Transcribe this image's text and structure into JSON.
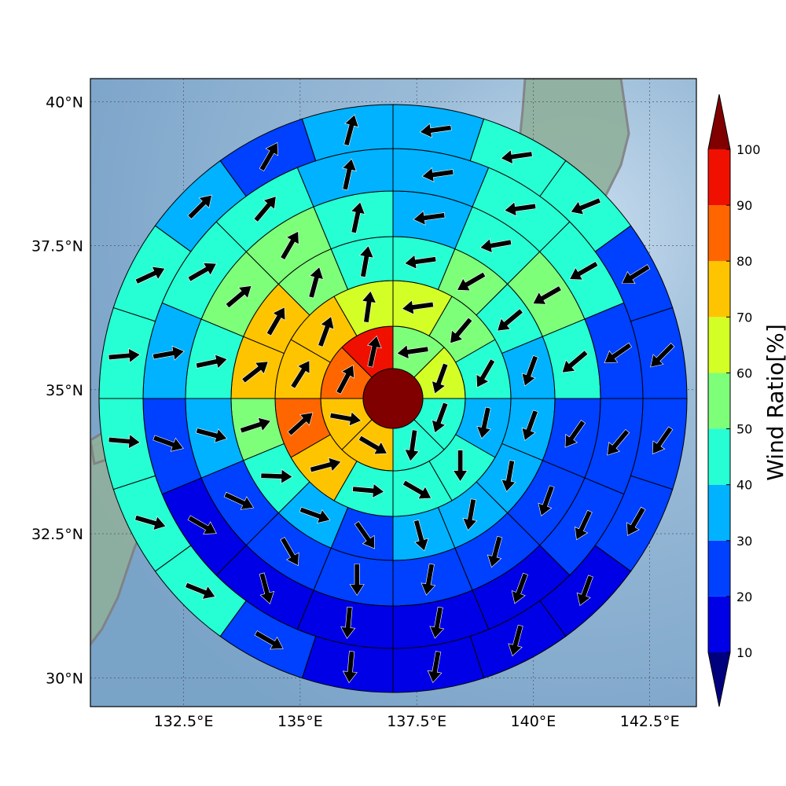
{
  "chart_data": {
    "type": "heatmap",
    "subtype": "polar sector map with wind direction arrows",
    "x_ticks": [
      "132.5°E",
      "135°E",
      "137.5°E",
      "140°E",
      "142.5°E"
    ],
    "x_tick_values": [
      132.5,
      135,
      137.5,
      140,
      142.5
    ],
    "y_ticks": [
      "40°N",
      "37.5°N",
      "35°N",
      "32.5°N",
      "30°N"
    ],
    "y_tick_values": [
      40,
      37.5,
      35,
      32.5,
      30
    ],
    "xlim": [
      130.5,
      143.5
    ],
    "ylim": [
      29.5,
      40.4
    ],
    "grid": true,
    "center": {
      "lon": 137.0,
      "lat": 34.9
    },
    "ring_edges": [
      0,
      1,
      2,
      3,
      4,
      5,
      6
    ],
    "colorbar": {
      "label": "Wind Ratio[%]",
      "ticks": [
        "10",
        "20",
        "30",
        "40",
        "50",
        "60",
        "70",
        "80",
        "90",
        "100"
      ],
      "bounds": [
        10,
        20,
        30,
        40,
        50,
        60,
        70,
        80,
        90,
        100
      ],
      "colors": [
        "#0000e6",
        "#0040ff",
        "#00b2ff",
        "#26ffd4",
        "#7dff7a",
        "#d4ff26",
        "#ffc400",
        "#ff6600",
        "#f01000"
      ],
      "under_color": "#00007f",
      "over_color": "#800000",
      "extend": "both"
    },
    "center_value": 100,
    "rings": [
      {
        "sectors": 8,
        "values": [
          52,
          62,
          45,
          42,
          72,
          72,
          82,
          94
        ],
        "arrows": [
          262,
          200,
          200,
          188,
          120,
          100,
          28,
          12
        ]
      },
      {
        "sectors": 12,
        "values": [
          62,
          52,
          44,
          38,
          42,
          42,
          45,
          72,
          82,
          72,
          72,
          62
        ],
        "arrows": [
          262,
          220,
          210,
          192,
          180,
          120,
          95,
          75,
          48,
          32,
          20,
          8
        ]
      },
      {
        "sectors": 16,
        "values": [
          45,
          55,
          45,
          36,
          36,
          33,
          33,
          35,
          25,
          35,
          45,
          55,
          72,
          72,
          55,
          45
        ],
        "arrows": [
          262,
          240,
          230,
          200,
          200,
          190,
          190,
          165,
          145,
          110,
          92,
          72,
          52,
          30,
          15,
          10
        ]
      },
      {
        "sectors": 16,
        "values": [
          38,
          45,
          52,
          42,
          25,
          25,
          25,
          25,
          22,
          22,
          25,
          35,
          45,
          52,
          52,
          45
        ],
        "arrows": [
          262,
          260,
          240,
          230,
          215,
          200,
          195,
          190,
          180,
          150,
          115,
          105,
          78,
          50,
          30,
          12
        ]
      },
      {
        "sectors": 16,
        "values": [
          35,
          42,
          42,
          25,
          25,
          22,
          18,
          15,
          15,
          15,
          15,
          22,
          38,
          45,
          45,
          35
        ],
        "arrows": [
          262,
          262,
          240,
          235,
          220,
          205,
          200,
          190,
          185,
          165,
          120,
          110,
          80,
          60,
          40,
          12
        ]
      },
      {
        "sectors": 20,
        "values": [
          35,
          42,
          45,
          25,
          25,
          22,
          22,
          18,
          18,
          15,
          15,
          25,
          45,
          45,
          45,
          45,
          45,
          35,
          25,
          35
        ],
        "arrows": [
          262,
          262,
          248,
          238,
          225,
          215,
          210,
          200,
          195,
          190,
          185,
          120,
          112,
          106,
          95,
          85,
          65,
          45,
          30,
          15
        ]
      }
    ]
  },
  "ocean_color": "#8bb0d0",
  "land_color": "#8fb09c",
  "coast_color": "#808080"
}
